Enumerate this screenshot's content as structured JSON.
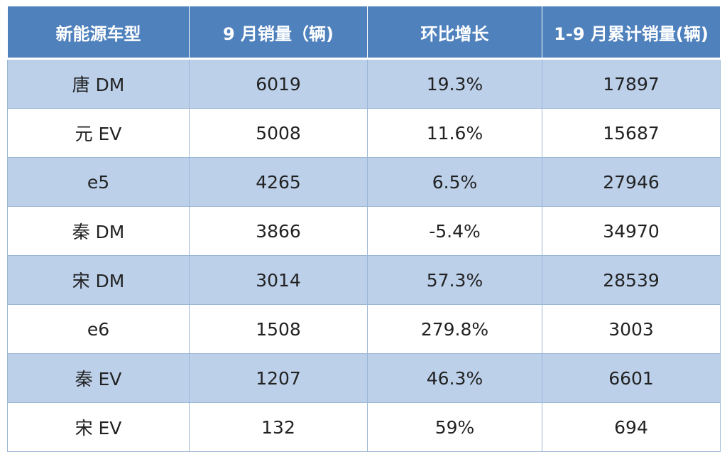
{
  "table": {
    "headers": [
      "新能源车型",
      "9 月销量（辆)",
      "环比增长",
      "1-9 月累计销量(辆)"
    ],
    "rows": [
      [
        "唐 DM",
        "6019",
        "19.3%",
        "17897"
      ],
      [
        "元 EV",
        "5008",
        "11.6%",
        "15687"
      ],
      [
        "e5",
        "4265",
        "6.5%",
        "27946"
      ],
      [
        "秦 DM",
        "3866",
        "-5.4%",
        "34970"
      ],
      [
        "宋 DM",
        "3014",
        "57.3%",
        "28539"
      ],
      [
        "e6",
        "1508",
        "279.8%",
        "3003"
      ],
      [
        "秦 EV",
        "1207",
        "46.3%",
        "6601"
      ],
      [
        "宋 EV",
        "132",
        "59%",
        "694"
      ]
    ]
  },
  "colors": {
    "header_bg": "#4f81bd",
    "header_text": "#ffffff",
    "band_row_bg": "#bcd0ea",
    "plain_row_bg": "#ffffff",
    "grid_line": "#9bb6d6"
  }
}
